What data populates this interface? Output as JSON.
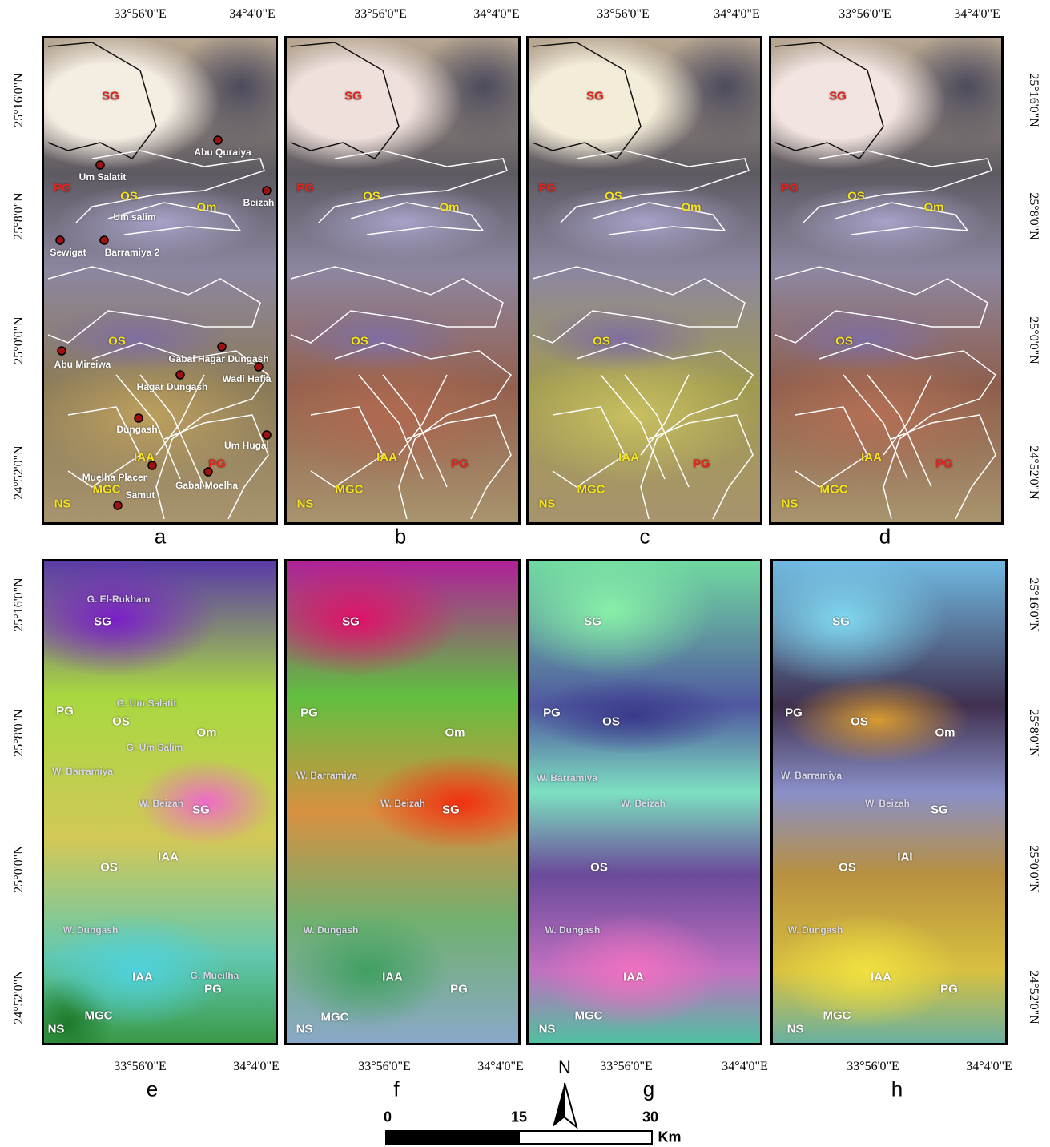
{
  "longitudes": [
    "33°56'0\"E",
    "34°4'0\"E"
  ],
  "latitudes": [
    "25°16'0\"N",
    "25°8'0\"N",
    "25°0'0\"N",
    "24°52'0\"N"
  ],
  "panels": [
    {
      "letter": "a",
      "labels": [
        {
          "text": "SG",
          "color": "#e3231c"
        },
        {
          "text": "PG",
          "color": "#e3231c"
        },
        {
          "text": "OS",
          "color": "#f5e31a"
        },
        {
          "text": "Om",
          "color": "#f5e31a"
        },
        {
          "text": "OS",
          "color": "#f5e31a"
        },
        {
          "text": "IAA",
          "color": "#f5e31a"
        },
        {
          "text": "PG",
          "color": "#e3231c"
        },
        {
          "text": "MGC",
          "color": "#f5e31a"
        },
        {
          "text": "NS",
          "color": "#f5e31a"
        },
        {
          "text": "Abu Quraiya",
          "color": "#ffffff"
        },
        {
          "text": "Um Salatit",
          "color": "#ffffff"
        },
        {
          "text": "Beizah",
          "color": "#ffffff"
        },
        {
          "text": "Um salim",
          "color": "#ffffff"
        },
        {
          "text": "Sewigat",
          "color": "#ffffff"
        },
        {
          "text": "Barramiya 2",
          "color": "#ffffff"
        },
        {
          "text": "Abu Mireiwa",
          "color": "#ffffff"
        },
        {
          "text": "Gabal Hagar Dungash",
          "color": "#ffffff"
        },
        {
          "text": "Wadi Hafia",
          "color": "#ffffff"
        },
        {
          "text": "Hagar Dungash",
          "color": "#ffffff"
        },
        {
          "text": "Dungash",
          "color": "#ffffff"
        },
        {
          "text": "Um Hugal",
          "color": "#ffffff"
        },
        {
          "text": "Muelha Placer",
          "color": "#ffffff"
        },
        {
          "text": "Gabal Moelha",
          "color": "#ffffff"
        },
        {
          "text": "Samut",
          "color": "#ffffff"
        }
      ]
    },
    {
      "letter": "b",
      "labels": [
        {
          "text": "SG",
          "color": "#e3231c"
        },
        {
          "text": "PG",
          "color": "#e3231c"
        },
        {
          "text": "OS",
          "color": "#f5e31a"
        },
        {
          "text": "Om",
          "color": "#f5e31a"
        },
        {
          "text": "OS",
          "color": "#f5e31a"
        },
        {
          "text": "IAA",
          "color": "#f5e31a"
        },
        {
          "text": "PG",
          "color": "#e3231c"
        },
        {
          "text": "MGC",
          "color": "#f5e31a"
        },
        {
          "text": "NS",
          "color": "#f5e31a"
        }
      ]
    },
    {
      "letter": "c",
      "labels": [
        {
          "text": "SG",
          "color": "#e3231c"
        },
        {
          "text": "PG",
          "color": "#e3231c"
        },
        {
          "text": "OS",
          "color": "#f5e31a"
        },
        {
          "text": "Om",
          "color": "#f5e31a"
        },
        {
          "text": "OS",
          "color": "#f5e31a"
        },
        {
          "text": "IAA",
          "color": "#f5e31a"
        },
        {
          "text": "PG",
          "color": "#e3231c"
        },
        {
          "text": "MGC",
          "color": "#f5e31a"
        },
        {
          "text": "NS",
          "color": "#f5e31a"
        }
      ]
    },
    {
      "letter": "d",
      "labels": [
        {
          "text": "SG",
          "color": "#e3231c"
        },
        {
          "text": "PG",
          "color": "#e3231c"
        },
        {
          "text": "OS",
          "color": "#f5e31a"
        },
        {
          "text": "Om",
          "color": "#f5e31a"
        },
        {
          "text": "OS",
          "color": "#f5e31a"
        },
        {
          "text": "IAA",
          "color": "#f5e31a"
        },
        {
          "text": "PG",
          "color": "#e3231c"
        },
        {
          "text": "MGC",
          "color": "#f5e31a"
        },
        {
          "text": "NS",
          "color": "#f5e31a"
        }
      ]
    },
    {
      "letter": "e",
      "labels": [
        {
          "text": "G. El-Rukham",
          "color": "#d8d8e8"
        },
        {
          "text": "SG",
          "color": "#ffffff"
        },
        {
          "text": "PG",
          "color": "#ffffff"
        },
        {
          "text": "G. Um Salatit",
          "color": "#d8d8e8"
        },
        {
          "text": "OS",
          "color": "#ffffff"
        },
        {
          "text": "Om",
          "color": "#ffffff"
        },
        {
          "text": "G. Um Salim",
          "color": "#d8d8e8"
        },
        {
          "text": "W. Barramiya",
          "color": "#d8d8e8"
        },
        {
          "text": "W. Beizah",
          "color": "#d8d8e8"
        },
        {
          "text": "SG",
          "color": "#ffffff"
        },
        {
          "text": "OS",
          "color": "#ffffff"
        },
        {
          "text": "IAA",
          "color": "#ffffff"
        },
        {
          "text": "W. Dungash",
          "color": "#d8d8e8"
        },
        {
          "text": "IAA",
          "color": "#ffffff"
        },
        {
          "text": "G. Mueilha",
          "color": "#d8d8e8"
        },
        {
          "text": "PG",
          "color": "#ffffff"
        },
        {
          "text": "MGC",
          "color": "#ffffff"
        },
        {
          "text": "NS",
          "color": "#ffffff"
        }
      ]
    },
    {
      "letter": "f",
      "labels": [
        {
          "text": "SG",
          "color": "#ffffff"
        },
        {
          "text": "PG",
          "color": "#ffffff"
        },
        {
          "text": "Om",
          "color": "#ffffff"
        },
        {
          "text": "W. Barramiya",
          "color": "#d8d8e8"
        },
        {
          "text": "W. Beizah",
          "color": "#d8d8e8"
        },
        {
          "text": "SG",
          "color": "#ffffff"
        },
        {
          "text": "W. Dungash",
          "color": "#d8d8e8"
        },
        {
          "text": "IAA",
          "color": "#ffffff"
        },
        {
          "text": "PG",
          "color": "#ffffff"
        },
        {
          "text": "MGC",
          "color": "#ffffff"
        },
        {
          "text": "NS",
          "color": "#ffffff"
        }
      ]
    },
    {
      "letter": "g",
      "labels": [
        {
          "text": "SG",
          "color": "#ffffff"
        },
        {
          "text": "PG",
          "color": "#ffffff"
        },
        {
          "text": "OS",
          "color": "#ffffff"
        },
        {
          "text": "W. Barramiya",
          "color": "#d8d8e8"
        },
        {
          "text": "W. Beizah",
          "color": "#d8d8e8"
        },
        {
          "text": "OS",
          "color": "#ffffff"
        },
        {
          "text": "W. Dungash",
          "color": "#d8d8e8"
        },
        {
          "text": "IAA",
          "color": "#ffffff"
        },
        {
          "text": "MGC",
          "color": "#ffffff"
        },
        {
          "text": "NS",
          "color": "#ffffff"
        }
      ]
    },
    {
      "letter": "h",
      "labels": [
        {
          "text": "SG",
          "color": "#ffffff"
        },
        {
          "text": "PG",
          "color": "#ffffff"
        },
        {
          "text": "OS",
          "color": "#ffffff"
        },
        {
          "text": "Om",
          "color": "#ffffff"
        },
        {
          "text": "W. Barramiya",
          "color": "#d8d8e8"
        },
        {
          "text": "W. Beizah",
          "color": "#d8d8e8"
        },
        {
          "text": "SG",
          "color": "#ffffff"
        },
        {
          "text": "OS",
          "color": "#ffffff"
        },
        {
          "text": "IAI",
          "color": "#ffffff"
        },
        {
          "text": "W. Dungash",
          "color": "#d8d8e8"
        },
        {
          "text": "IAA",
          "color": "#ffffff"
        },
        {
          "text": "PG",
          "color": "#ffffff"
        },
        {
          "text": "MGC",
          "color": "#ffffff"
        },
        {
          "text": "NS",
          "color": "#ffffff"
        }
      ]
    }
  ],
  "scale_bar": {
    "ticks": [
      0,
      15,
      30
    ],
    "unit": "Km"
  },
  "north": "N"
}
